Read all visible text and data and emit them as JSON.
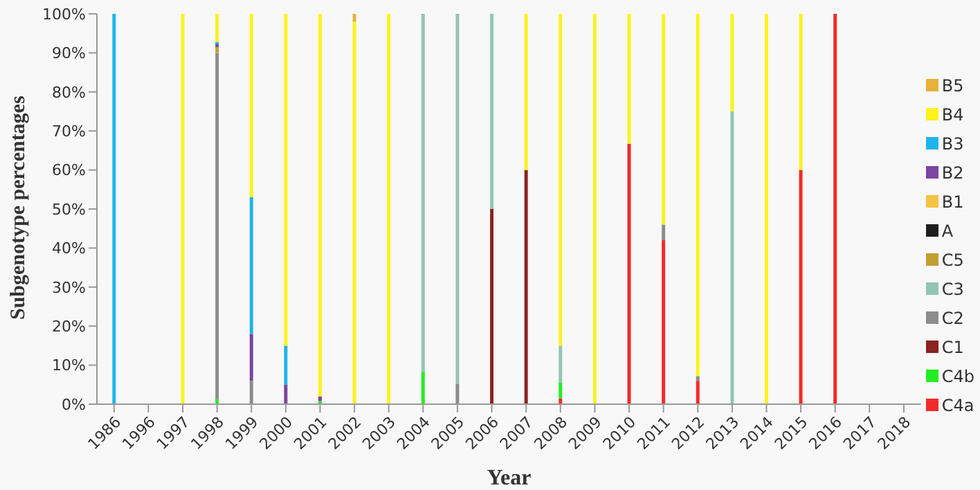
{
  "chart_data": {
    "type": "bar",
    "stacked": true,
    "xlabel": "Year",
    "ylabel": "Subgenotype percentages",
    "categories": [
      "1986",
      "1996",
      "1997",
      "1998",
      "1999",
      "2000",
      "2001",
      "2002",
      "2003",
      "2004",
      "2005",
      "2006",
      "2007",
      "2008",
      "2009",
      "2010",
      "2011",
      "2012",
      "2013",
      "2014",
      "2015",
      "2016",
      "2017",
      "2018"
    ],
    "series": [
      {
        "name": "C4a",
        "color": "#f22a2a",
        "values": [
          null,
          null,
          null,
          null,
          null,
          null,
          null,
          null,
          null,
          null,
          null,
          null,
          null,
          1.5,
          null,
          66.7,
          42,
          6,
          null,
          null,
          60,
          100,
          null,
          null
        ]
      },
      {
        "name": "C4b",
        "color": "#22ee22",
        "values": [
          null,
          null,
          null,
          1.3,
          null,
          null,
          0.8,
          null,
          null,
          8.3,
          null,
          null,
          null,
          4,
          null,
          null,
          null,
          null,
          null,
          null,
          null,
          null,
          null,
          null
        ]
      },
      {
        "name": "C1",
        "color": "#8b2323",
        "values": [
          null,
          null,
          null,
          null,
          null,
          null,
          null,
          null,
          null,
          null,
          null,
          50,
          60,
          null,
          null,
          null,
          null,
          null,
          null,
          null,
          null,
          null,
          null,
          null
        ]
      },
      {
        "name": "C2",
        "color": "#8c8c8c",
        "values": [
          null,
          null,
          null,
          88.7,
          6,
          null,
          null,
          null,
          null,
          null,
          5.2,
          null,
          null,
          null,
          null,
          null,
          4,
          1.2,
          null,
          null,
          null,
          null,
          null,
          null
        ]
      },
      {
        "name": "C3",
        "color": "#92c5b4",
        "values": [
          null,
          null,
          null,
          null,
          null,
          null,
          null,
          null,
          null,
          91.7,
          94.8,
          50,
          null,
          9.5,
          null,
          null,
          null,
          null,
          75,
          null,
          null,
          null,
          null,
          null
        ]
      },
      {
        "name": "C5",
        "color": "#c0a030",
        "values": [
          null,
          null,
          null,
          1.5,
          null,
          null,
          null,
          null,
          null,
          null,
          null,
          null,
          null,
          null,
          null,
          null,
          null,
          null,
          null,
          null,
          null,
          null,
          null,
          null
        ]
      },
      {
        "name": "A",
        "color": "#1e1e1e",
        "values": [
          null,
          null,
          null,
          null,
          null,
          null,
          null,
          null,
          null,
          null,
          null,
          null,
          null,
          null,
          null,
          null,
          null,
          null,
          null,
          null,
          null,
          null,
          null,
          null
        ]
      },
      {
        "name": "B1",
        "color": "#f5c242",
        "values": [
          null,
          null,
          null,
          null,
          null,
          null,
          null,
          null,
          null,
          null,
          null,
          null,
          null,
          null,
          null,
          null,
          null,
          null,
          null,
          null,
          null,
          null,
          null,
          null
        ]
      },
      {
        "name": "B2",
        "color": "#7d44a0",
        "values": [
          null,
          null,
          null,
          0.7,
          12,
          5,
          1.2,
          null,
          null,
          null,
          null,
          null,
          null,
          null,
          null,
          null,
          null,
          null,
          null,
          null,
          null,
          null,
          null,
          null
        ]
      },
      {
        "name": "B3",
        "color": "#1fb4ea",
        "values": [
          100,
          null,
          null,
          0.6,
          35,
          10,
          null,
          null,
          null,
          null,
          null,
          null,
          null,
          null,
          null,
          null,
          null,
          null,
          null,
          null,
          null,
          null,
          null,
          null
        ]
      },
      {
        "name": "B4",
        "color": "#fdf21e",
        "values": [
          null,
          null,
          100,
          7.2,
          47,
          85,
          98,
          98,
          100,
          null,
          null,
          null,
          40,
          85,
          100,
          33.3,
          54,
          92.8,
          25,
          100,
          40,
          null,
          null,
          null
        ]
      },
      {
        "name": "B5",
        "color": "#e6b23a",
        "values": [
          null,
          null,
          null,
          null,
          null,
          null,
          null,
          2,
          null,
          null,
          null,
          null,
          null,
          null,
          null,
          null,
          null,
          null,
          null,
          null,
          null,
          null,
          null,
          null
        ]
      }
    ],
    "ylim": [
      0,
      100
    ],
    "yticks": [
      {
        "value": 0,
        "label": "0%"
      },
      {
        "value": 10,
        "label": "10%"
      },
      {
        "value": 20,
        "label": "20%"
      },
      {
        "value": 30,
        "label": "30%"
      },
      {
        "value": 40,
        "label": "40%"
      },
      {
        "value": 50,
        "label": "50%"
      },
      {
        "value": 60,
        "label": "60%"
      },
      {
        "value": 70,
        "label": "70%"
      },
      {
        "value": 80,
        "label": "80%"
      },
      {
        "value": 90,
        "label": "90%"
      },
      {
        "value": 100,
        "label": "100%"
      }
    ],
    "grid": false,
    "legend": "right"
  }
}
